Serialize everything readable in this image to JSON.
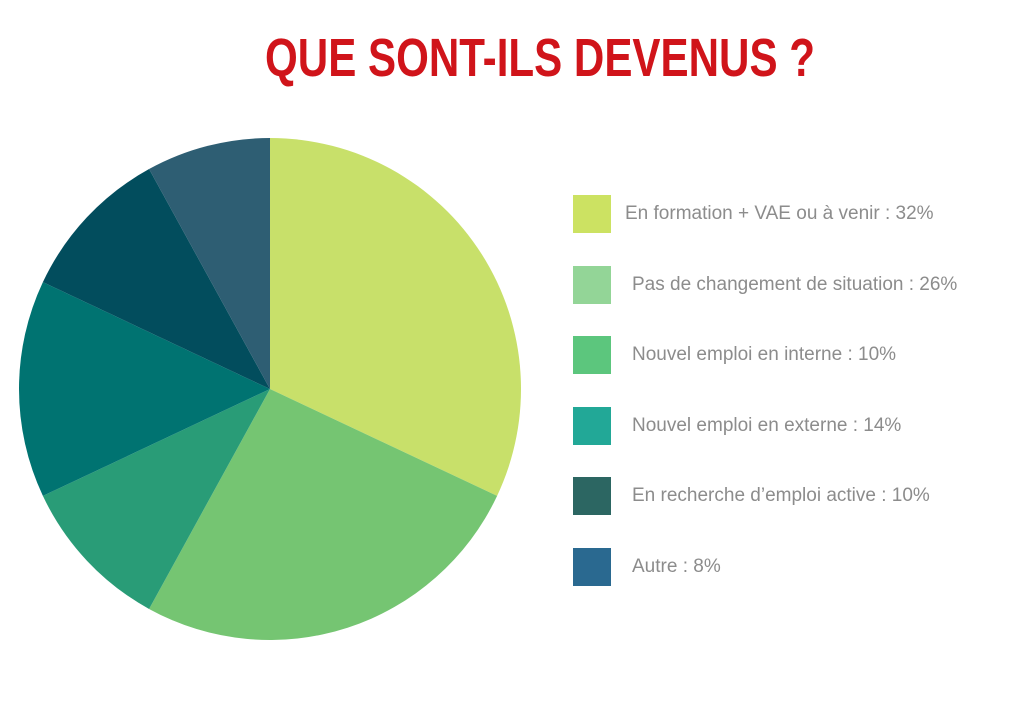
{
  "title": "QUE SONT-ILS DEVENUS ?",
  "colors": {
    "title": "#d0141a",
    "legend_text": "#8c8c8c"
  },
  "chart_data": {
    "type": "pie",
    "start_angle_deg": 0,
    "direction": "clockwise",
    "slices": [
      {
        "label": "En formation + VAE ou à venir : 32%",
        "value": 32,
        "color": "#c8e06a",
        "legend_color": "#cce262"
      },
      {
        "label": "Pas de changement de situation : 26%",
        "value": 26,
        "color": "#75c572",
        "legend_color": "#93d597"
      },
      {
        "label": "Nouvel emploi en interne : 10%",
        "value": 10,
        "color": "#299c77",
        "legend_color": "#5cc67d"
      },
      {
        "label": "Nouvel emploi en externe : 14%",
        "value": 14,
        "color": "#007371",
        "legend_color": "#22a897"
      },
      {
        "label": "En recherche d’emploi active : 10%",
        "value": 10,
        "color": "#024d5d",
        "legend_color": "#2c6662"
      },
      {
        "label": "Autre : 8%",
        "value": 8,
        "color": "#2e5e73",
        "legend_color": "#2a6990"
      }
    ]
  }
}
